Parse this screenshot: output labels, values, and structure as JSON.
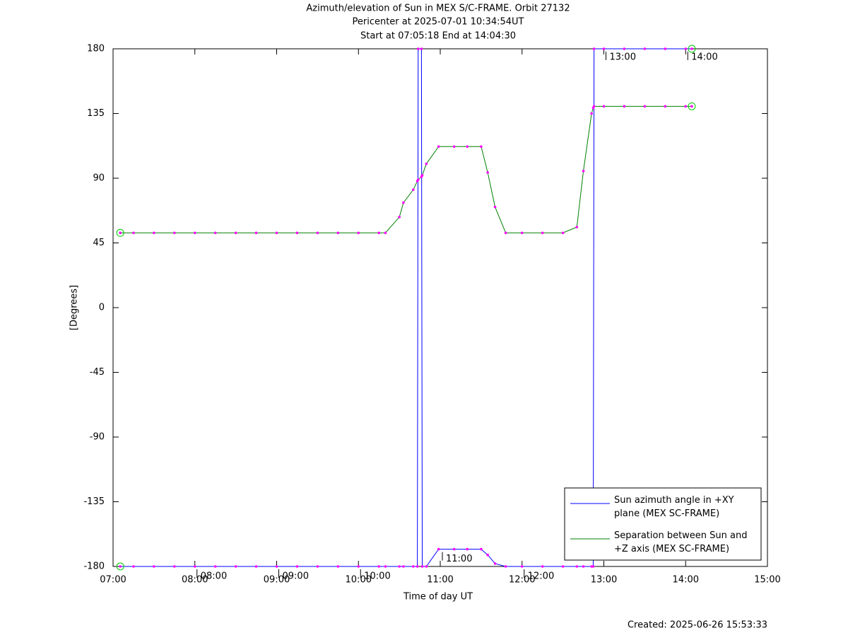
{
  "chart_data": {
    "type": "line",
    "title": "Azimuth/elevation of Sun in MEX S/C-FRAME.  Orbit 27132",
    "subtitle": [
      "Pericenter at 2025-07-01 10:34:54UT",
      "Start at 07:05:18 End at 14:04:30"
    ],
    "xlabel": "Time of day UT",
    "ylabel": "[Degrees]",
    "footer": "Created: 2025-06-26 15:53:33",
    "x": [
      7.088,
      7.25,
      7.5,
      7.75,
      8,
      8.25,
      8.5,
      8.75,
      9,
      9.25,
      9.5,
      9.75,
      10,
      10.25,
      10.33,
      10.5,
      10.55,
      10.67,
      10.72,
      10.73,
      10.77,
      10.78,
      10.83,
      10.98,
      11.17,
      11.33,
      11.5,
      11.58,
      11.67,
      11.8,
      12,
      12.25,
      12.5,
      12.67,
      12.75,
      12.85,
      12.87,
      12.88,
      13,
      13.25,
      13.5,
      13.75,
      14,
      14.075
    ],
    "series": [
      {
        "name": "Sun azimuth angle in +XY plane (MEX SC-FRAME)",
        "color": "#0000ff",
        "values": [
          -180,
          -180,
          -180,
          -180,
          -180,
          -180,
          -180,
          -180,
          -180,
          -180,
          -180,
          -180,
          -180,
          -180,
          -180,
          -180,
          -180,
          -180,
          -180,
          180,
          180,
          -180,
          -180,
          -168,
          -168,
          -168,
          -168,
          -172,
          -178,
          -180,
          -180,
          -180,
          -180,
          -180,
          -180,
          -180,
          -180,
          180,
          180,
          180,
          180,
          180,
          180,
          180
        ]
      },
      {
        "name": "Separation between Sun and +Z axis (MEX SC-FRAME)",
        "color": "#008000",
        "values": [
          52,
          52,
          52,
          52,
          52,
          52,
          52,
          52,
          52,
          52,
          52,
          52,
          52,
          52,
          52,
          63,
          73,
          82,
          88,
          89,
          91,
          92,
          100,
          112,
          112,
          112,
          112,
          94,
          70,
          52,
          52,
          52,
          52,
          56,
          95,
          135,
          139,
          140,
          140,
          140,
          140,
          140,
          140,
          140
        ]
      }
    ],
    "marker_color": "#ff00ff",
    "xlim": [
      7,
      15
    ],
    "xticks": [
      {
        "value": 7,
        "label": "07:00"
      },
      {
        "value": 8,
        "label": "08:00"
      },
      {
        "value": 9,
        "label": "09:00"
      },
      {
        "value": 10,
        "label": "10:00"
      },
      {
        "value": 11,
        "label": "11:00"
      },
      {
        "value": 12,
        "label": "12:00"
      },
      {
        "value": 13,
        "label": "13:00"
      },
      {
        "value": 14,
        "label": "14:00"
      },
      {
        "value": 15,
        "label": "15:00"
      }
    ],
    "ylim": [
      -180,
      180
    ],
    "yticks": [
      -180,
      -135,
      -90,
      -45,
      0,
      45,
      90,
      135,
      180
    ],
    "grid": false,
    "legend": "lower right",
    "annotations": [
      {
        "x": 8,
        "y": -180,
        "label": "08:00"
      },
      {
        "x": 9,
        "y": -180,
        "label": "09:00"
      },
      {
        "x": 10,
        "y": -180,
        "label": "10:00"
      },
      {
        "x": 11,
        "y": -168,
        "label": "11:00"
      },
      {
        "x": 12,
        "y": -180,
        "label": "12:00"
      },
      {
        "x": 13,
        "y": 180,
        "label": "13:00"
      },
      {
        "x": 14,
        "y": 180,
        "label": "14:00"
      }
    ]
  }
}
